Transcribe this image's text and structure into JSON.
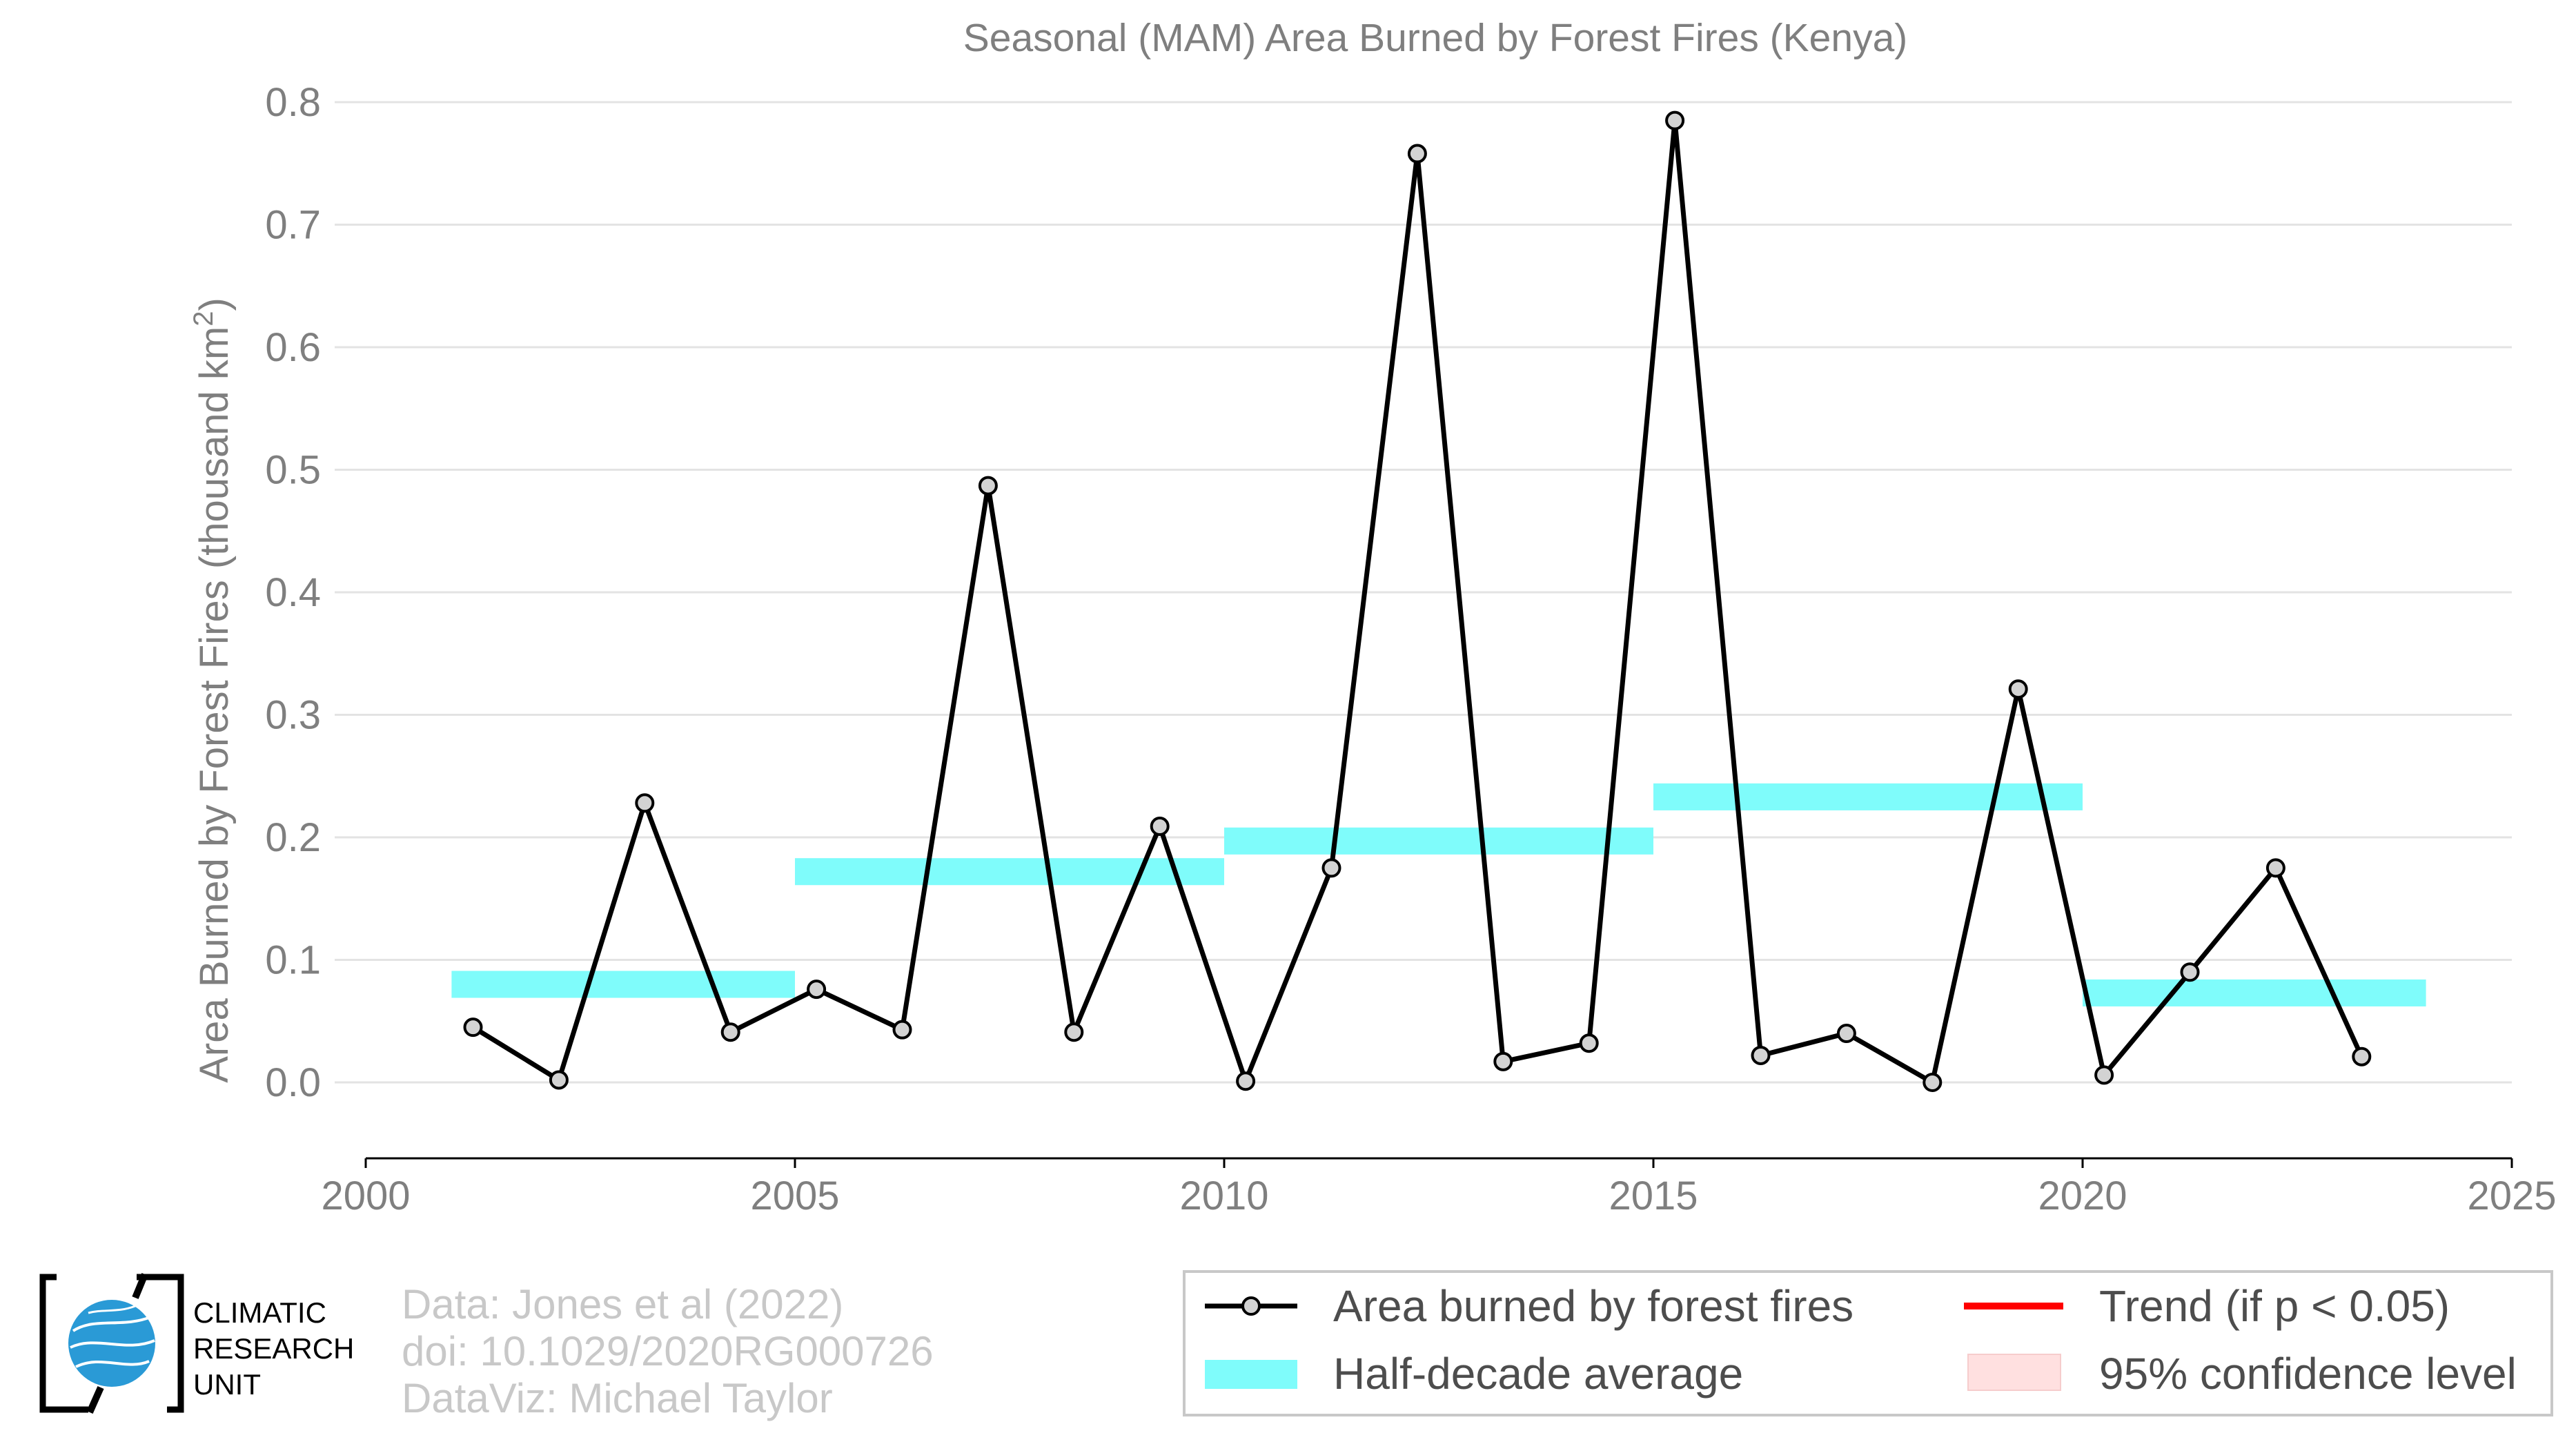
{
  "chart_data": {
    "type": "line",
    "title": "Seasonal (MAM) Area Burned by Forest Fires (Kenya)",
    "ylabel": "Area Burned by Forest Fires (thousand km",
    "ylabel_superscript": "2",
    "ylabel_close": ")",
    "xlabel": "",
    "xlim": [
      2000,
      2025
    ],
    "ylim": [
      -0.06,
      0.8
    ],
    "x_ticks": [
      2000,
      2005,
      2010,
      2015,
      2020,
      2025
    ],
    "x_tick_labels": [
      "2000",
      "2005",
      "2010",
      "2015",
      "2020",
      "2025"
    ],
    "y_ticks": [
      0,
      0.1,
      0.2,
      0.3,
      0.4,
      0.5,
      0.6,
      0.7,
      0.8
    ],
    "y_tick_labels": [
      "0.0",
      "0.1",
      "0.2",
      "0.3",
      "0.4",
      "0.5",
      "0.6",
      "0.7",
      "0.8"
    ],
    "grid": "horizontal",
    "series": [
      {
        "name": "Area burned by forest fires",
        "color": "#000000",
        "marker_fill": "#d3d3d3",
        "x": [
          2001.25,
          2002.25,
          2003.25,
          2004.25,
          2005.25,
          2006.25,
          2007.25,
          2008.25,
          2009.25,
          2010.25,
          2011.25,
          2012.25,
          2013.25,
          2014.25,
          2015.25,
          2016.25,
          2017.25,
          2018.25,
          2019.25,
          2020.25,
          2021.25,
          2022.25,
          2023.25
        ],
        "values": [
          0.045,
          0.002,
          0.228,
          0.041,
          0.076,
          0.043,
          0.487,
          0.041,
          0.209,
          0.001,
          0.175,
          0.758,
          0.017,
          0.032,
          0.785,
          0.022,
          0.04,
          0.0,
          0.321,
          0.006,
          0.09,
          0.175,
          0.021
        ]
      }
    ],
    "half_decade_average": {
      "name": "Half-decade average",
      "color": "#7ffcfb",
      "segments": [
        {
          "start": 2001,
          "end": 2005,
          "value": 0.08
        },
        {
          "start": 2005,
          "end": 2010,
          "value": 0.172
        },
        {
          "start": 2010,
          "end": 2015,
          "value": 0.197
        },
        {
          "start": 2015,
          "end": 2020,
          "value": 0.233
        },
        {
          "start": 2020,
          "end": 2024,
          "value": 0.073
        }
      ]
    },
    "legend": {
      "placement": "bottom-right",
      "items": [
        {
          "label": "Area burned by forest fires",
          "kind": "line-marker",
          "color": "#000000"
        },
        {
          "label": "Trend (if p < 0.05)",
          "kind": "line",
          "color": "#ff0000"
        },
        {
          "label": "Half-decade average",
          "kind": "band",
          "color": "#7ffcfb"
        },
        {
          "label": "95% confidence level",
          "kind": "box",
          "color": "#ffe0e0"
        }
      ]
    }
  },
  "credits": {
    "line1": "Data: Jones et al (2022)",
    "line2": "doi: 10.1029/2020RG000726",
    "line3": "DataViz: Michael Taylor"
  },
  "logo": {
    "line1": "CLIMATIC",
    "line2": "RESEARCH",
    "line3": "UNIT"
  }
}
